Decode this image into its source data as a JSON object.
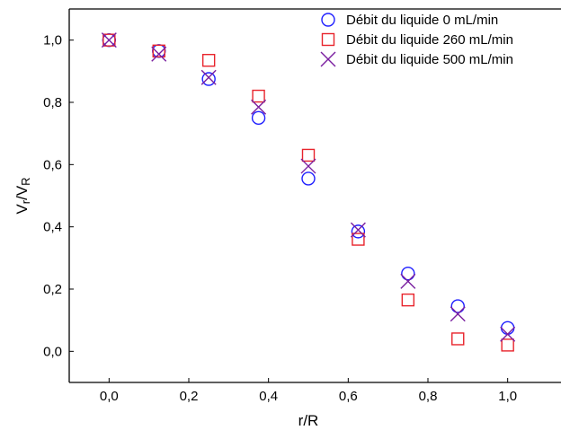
{
  "chart_data": {
    "type": "scatter",
    "title": "",
    "xlabel": "r/R",
    "ylabel": "Vr/VR",
    "xlim": [
      -0.1,
      1.1
    ],
    "ylim": [
      -0.1,
      1.1
    ],
    "grid": false,
    "legend_position": "top-right",
    "x_ticks": [
      {
        "value": 0.0,
        "label": "0,0"
      },
      {
        "value": 0.2,
        "label": "0,2"
      },
      {
        "value": 0.4,
        "label": "0,4"
      },
      {
        "value": 0.6,
        "label": "0,6"
      },
      {
        "value": 0.8,
        "label": "0,8"
      },
      {
        "value": 1.0,
        "label": "1,0"
      }
    ],
    "y_ticks": [
      {
        "value": 0.0,
        "label": "0,0"
      },
      {
        "value": 0.2,
        "label": "0,2"
      },
      {
        "value": 0.4,
        "label": "0,4"
      },
      {
        "value": 0.6,
        "label": "0,6"
      },
      {
        "value": 0.8,
        "label": "0,8"
      },
      {
        "value": 1.0,
        "label": "1,0"
      }
    ],
    "series": [
      {
        "name": "Débit du liquide   0   mL/min",
        "marker": "circle",
        "color": "#1f1fff",
        "x": [
          0.0,
          0.125,
          0.25,
          0.375,
          0.5,
          0.625,
          0.75,
          0.875,
          1.0
        ],
        "y": [
          1.0,
          0.965,
          0.875,
          0.75,
          0.555,
          0.385,
          0.25,
          0.145,
          0.075
        ]
      },
      {
        "name": "Débit du liquide 260 mL/min",
        "marker": "square",
        "color": "#e8242c",
        "x": [
          0.0,
          0.125,
          0.25,
          0.375,
          0.5,
          0.625,
          0.75,
          0.875,
          1.0
        ],
        "y": [
          1.0,
          0.965,
          0.935,
          0.82,
          0.63,
          0.36,
          0.165,
          0.04,
          0.02
        ]
      },
      {
        "name": "Débit du liquide 500 mL/min",
        "marker": "x",
        "color": "#7a1fa0",
        "x": [
          0.0,
          0.125,
          0.25,
          0.375,
          0.5,
          0.625,
          0.75,
          0.875,
          1.0
        ],
        "y": [
          1.0,
          0.955,
          0.88,
          0.785,
          0.595,
          0.39,
          0.225,
          0.12,
          0.055
        ]
      }
    ]
  }
}
